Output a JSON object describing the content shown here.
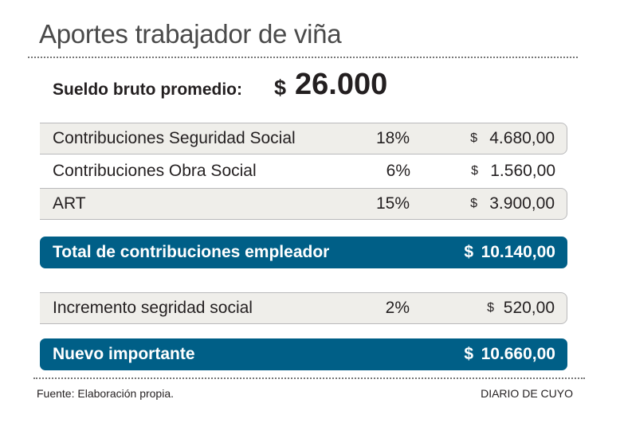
{
  "title": "Aportes trabajador de viña",
  "sueldo": {
    "label": "Sueldo bruto promedio:",
    "currency": "$",
    "value": "26.000"
  },
  "rows": [
    {
      "label": "Contribuciones Seguridad Social",
      "pct": "18%",
      "currency": "$",
      "amount": "4.680,00"
    },
    {
      "label": "Contribuciones Obra Social",
      "pct": "6%",
      "currency": "$",
      "amount": "1.560,00"
    },
    {
      "label": "ART",
      "pct": "15%",
      "currency": "$",
      "amount": "3.900,00"
    }
  ],
  "total": {
    "label": "Total de contribuciones empleador",
    "currency": "$",
    "amount": "10.140,00"
  },
  "incremento": {
    "label": "Incremento segridad social",
    "pct": "2%",
    "currency": "$",
    "amount": "520,00"
  },
  "nuevo": {
    "label": "Nuevo importante",
    "currency": "$",
    "amount": "10.660,00"
  },
  "footer": {
    "source": "Fuente: Elaboración propia.",
    "brand": "DIARIO DE CUYO"
  },
  "colors": {
    "accent": "#005f87",
    "row_bg": "#efeeea"
  }
}
